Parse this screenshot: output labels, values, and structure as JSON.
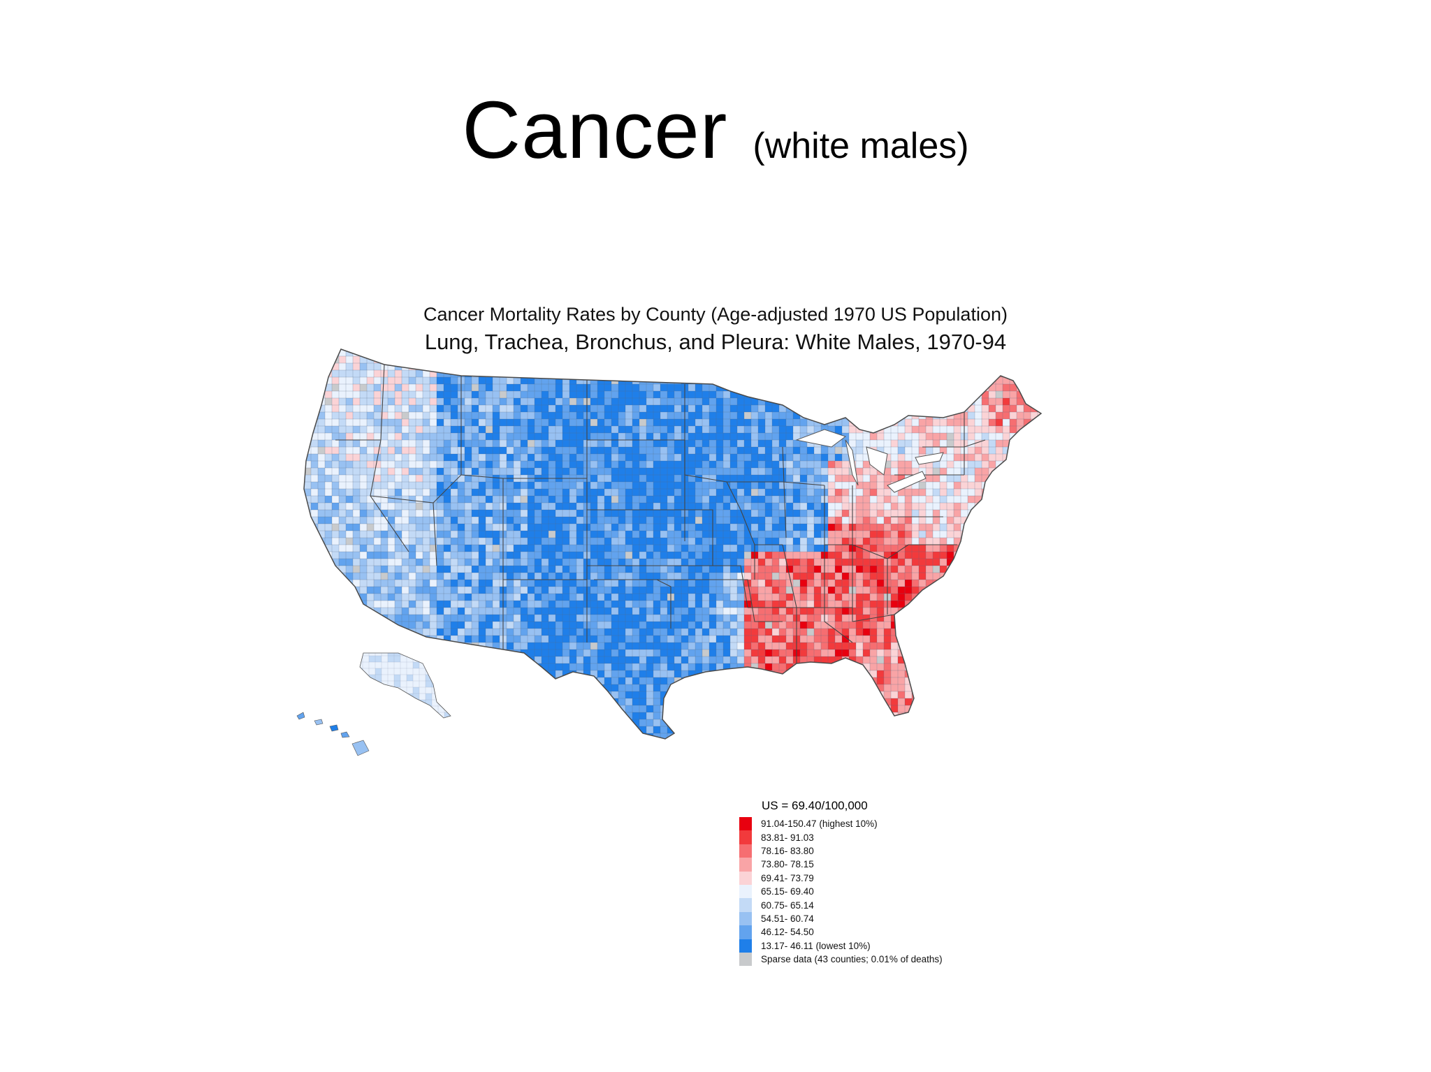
{
  "slide": {
    "title": "Cancer",
    "subtitle": "(white males)"
  },
  "map": {
    "title": "Cancer Mortality Rates by County (Age-adjusted 1970 US Population)",
    "subtitle": "Lung, Trachea, Bronchus, and Pleura:  White Males, 1970-94",
    "us_rate": "US = 69.40/100,000",
    "legend": [
      {
        "label": "91.04-150.47 (highest 10%)",
        "color": "#e8000f"
      },
      {
        "label": "83.81- 91.03",
        "color": "#f23a3c"
      },
      {
        "label": "78.16- 83.80",
        "color": "#f66e71"
      },
      {
        "label": "73.80- 78.15",
        "color": "#f9a4a6"
      },
      {
        "label": "69.41- 73.79",
        "color": "#fbd3d6"
      },
      {
        "label": "65.15- 69.40",
        "color": "#eaf2fd"
      },
      {
        "label": "60.75- 65.14",
        "color": "#c3daf6"
      },
      {
        "label": "54.51- 60.74",
        "color": "#98c1f2"
      },
      {
        "label": "46.12- 54.50",
        "color": "#62a3ee"
      },
      {
        "label": "13.17- 46.11 (lowest 10%)",
        "color": "#1f7fe9"
      },
      {
        "label": "Sparse data (43 counties; 0.01% of deaths)",
        "color": "#c8cacc"
      }
    ]
  }
}
